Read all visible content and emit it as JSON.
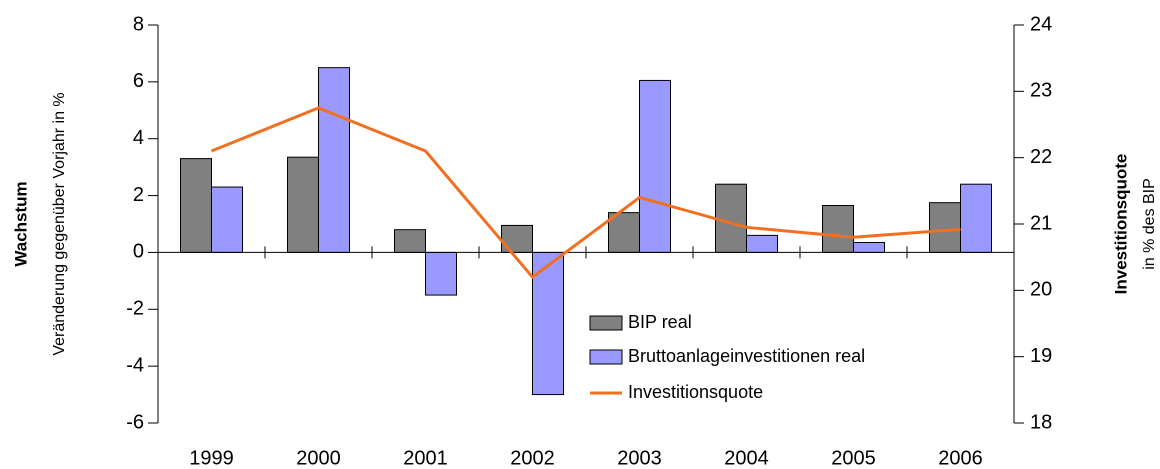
{
  "chart_data": {
    "type": "bar-line",
    "y_label": "Wachstum",
    "y_sublabel": "Veränderung gegenüber Vorjahr in %",
    "y2_label": "Investitionsquote",
    "y2_sublabel": "in % des BIP",
    "categories": [
      "1999",
      "2000",
      "2001",
      "2002",
      "2003",
      "2004",
      "2005",
      "2006"
    ],
    "series": [
      {
        "name": "BIP real",
        "type": "bar",
        "color": "#808080",
        "values": [
          3.3,
          3.35,
          0.8,
          0.95,
          1.4,
          2.4,
          1.65,
          1.75
        ]
      },
      {
        "name": "Bruttoanlageinvestitionen real",
        "type": "bar",
        "color": "#9999ff",
        "values": [
          2.3,
          6.5,
          -1.5,
          -5.0,
          6.05,
          0.6,
          0.35,
          2.4
        ]
      },
      {
        "name": "Investitionsquote",
        "type": "line",
        "axis": "y2",
        "color": "#f07020",
        "values": [
          22.1,
          22.75,
          22.1,
          20.2,
          21.4,
          20.95,
          20.8,
          20.92
        ]
      }
    ],
    "ylim": [
      -6,
      8
    ],
    "yticks": [
      -6,
      -4,
      -2,
      0,
      2,
      4,
      6,
      8
    ],
    "y2lim": [
      18,
      24
    ],
    "y2ticks": [
      18,
      19,
      20,
      21,
      22,
      23,
      24
    ]
  }
}
